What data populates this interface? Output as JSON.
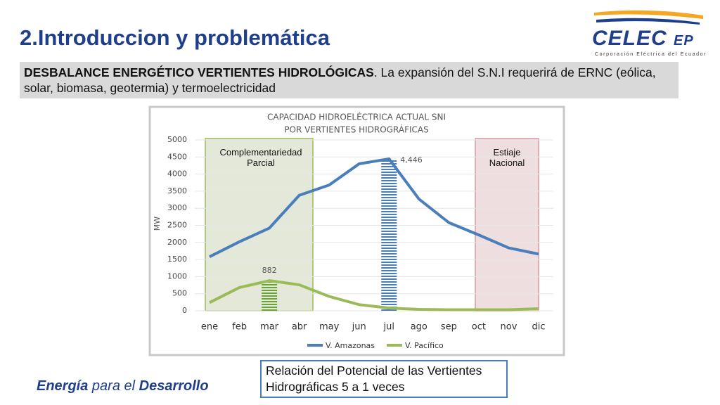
{
  "slide": {
    "title": "2.Introduccion y problemática",
    "logo": {
      "name": "CELEC",
      "suffix": "EP",
      "tagline": "Corporación Eléctrica del Ecuador"
    },
    "intro": {
      "bold": "DESBALANCE ENERGÉTICO VERTIENTES HIDROLÓGICAS",
      "rest": ". La expansión del S.N.I requerirá de ERNC (eólica, solar, biomasa, geotermia) y termoelectricidad"
    },
    "footer": [
      "Energía",
      "para el",
      "Desarrollo"
    ],
    "note": "Relación del Potencial de las Vertientes Hidrográficas 5 a 1 veces"
  },
  "chart_data": {
    "type": "line",
    "title": "CAPACIDAD HIDROELÉCTRICA ACTUAL SNI",
    "subtitle": "POR VERTIENTES HIDROGRÁFICAS",
    "y_label": "MW",
    "categories": [
      "ene",
      "feb",
      "mar",
      "abr",
      "may",
      "jun",
      "jul",
      "ago",
      "sep",
      "oct",
      "nov",
      "dic"
    ],
    "series": [
      {
        "name": "V. Amazonas",
        "color": "#4a7ebb",
        "values": [
          1580,
          2020,
          2420,
          3380,
          3680,
          4300,
          4446,
          3270,
          2580,
          2220,
          1840,
          1660
        ],
        "value_labels": [
          null,
          null,
          null,
          null,
          null,
          null,
          "4,446",
          null,
          null,
          null,
          null,
          null
        ]
      },
      {
        "name": "V. Pacífico",
        "color": "#9bbb59",
        "values": [
          240,
          680,
          882,
          760,
          420,
          180,
          80,
          40,
          30,
          30,
          30,
          60
        ],
        "value_labels": [
          null,
          null,
          "882",
          null,
          null,
          null,
          null,
          null,
          null,
          null,
          null,
          null
        ]
      }
    ],
    "annotations": [
      "Complementariedad Parcial",
      "Estiaje Nacional"
    ],
    "ylim": [
      0,
      5000
    ],
    "yticks": [
      0,
      500,
      1000,
      1500,
      2000,
      2500,
      3000,
      3500,
      4000,
      4500,
      5000
    ],
    "grid": true,
    "legend": "bottom"
  }
}
